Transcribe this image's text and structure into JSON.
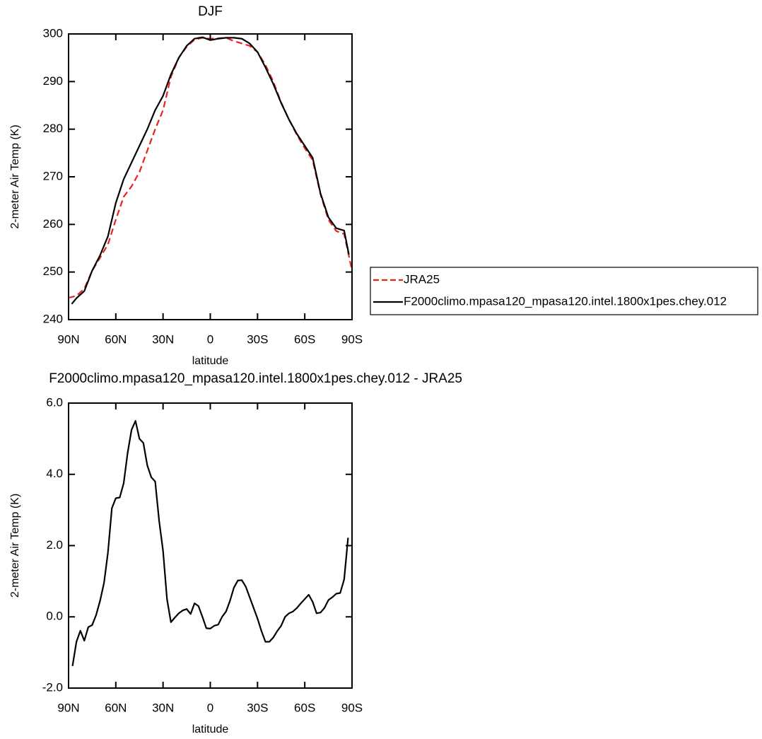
{
  "chart_data": [
    {
      "type": "line",
      "title": "DJF",
      "xlabel": "latitude",
      "ylabel": "2-meter Air Temp (K)",
      "xlim": [
        90,
        -90
      ],
      "xticks": [
        {
          "value": 90,
          "label": "90N"
        },
        {
          "value": 60,
          "label": "60N"
        },
        {
          "value": 30,
          "label": "30N"
        },
        0,
        {
          "value": -30,
          "label": "30S"
        },
        {
          "value": -60,
          "label": "60S"
        },
        {
          "value": -90,
          "label": "90S"
        }
      ],
      "ylim": [
        240,
        300
      ],
      "yticks": [
        240,
        250,
        260,
        270,
        280,
        290,
        300
      ],
      "legend": "right",
      "series": [
        {
          "name": "JRA25",
          "color": "#e8221c",
          "dash": true,
          "x": [
            90,
            85,
            80,
            75,
            70,
            65,
            60,
            55,
            50,
            45,
            40,
            35,
            30,
            25,
            20,
            15,
            10,
            5,
            0,
            -5,
            -10,
            -15,
            -20,
            -25,
            -30,
            -35,
            -40,
            -45,
            -50,
            -55,
            -60,
            -65,
            -70,
            -75,
            -80,
            -85,
            -90
          ],
          "values": [
            244.6,
            245.0,
            246.5,
            250.3,
            253.0,
            255.8,
            261.0,
            265.8,
            268.0,
            271.0,
            275.5,
            280.0,
            284.0,
            291.0,
            295.0,
            297.3,
            298.8,
            299.2,
            299.0,
            299.1,
            299.2,
            298.5,
            298.0,
            297.5,
            296.2,
            293.5,
            290.0,
            285.6,
            282.0,
            278.8,
            276.0,
            273.5,
            266.3,
            261.0,
            258.6,
            258.0,
            250.3
          ]
        },
        {
          "name": "F2000climo.mpasa120_mpasa120.intel.1800x1pes.chey.012",
          "color": "#000000",
          "dash": false,
          "x": [
            88,
            85,
            80,
            75,
            70,
            65,
            60,
            55,
            50,
            45,
            40,
            35,
            30,
            25,
            20,
            15,
            10,
            5,
            0,
            -5,
            -10,
            -15,
            -20,
            -25,
            -30,
            -35,
            -40,
            -45,
            -50,
            -55,
            -60,
            -65,
            -70,
            -75,
            -80,
            -85,
            -88
          ],
          "values": [
            243.3,
            244.5,
            246.0,
            250.3,
            253.5,
            257.5,
            264.5,
            269.5,
            273.0,
            276.5,
            280.0,
            284.0,
            287.0,
            291.5,
            295.0,
            297.5,
            299.0,
            299.3,
            298.7,
            299.0,
            299.2,
            299.2,
            299.0,
            298.0,
            296.2,
            293.0,
            289.5,
            285.5,
            282.0,
            279.0,
            276.5,
            274.0,
            266.5,
            261.5,
            259.2,
            258.7,
            253.7
          ]
        }
      ]
    },
    {
      "type": "line",
      "title": "F2000climo.mpasa120_mpasa120.intel.1800x1pes.chey.012 - JRA25",
      "xlabel": "latitude",
      "ylabel": "2-meter Air Temp (K)",
      "xlim": [
        90,
        -90
      ],
      "xticks": [
        {
          "value": 90,
          "label": "90N"
        },
        {
          "value": 60,
          "label": "60N"
        },
        {
          "value": 30,
          "label": "30N"
        },
        0,
        {
          "value": -30,
          "label": "30S"
        },
        {
          "value": -60,
          "label": "60S"
        },
        {
          "value": -90,
          "label": "90S"
        }
      ],
      "ylim": [
        -2,
        6
      ],
      "yticks": [
        {
          "value": -2,
          "label": "-2.0"
        },
        {
          "value": 0,
          "label": "0.0"
        },
        {
          "value": 2,
          "label": "2.0"
        },
        {
          "value": 4,
          "label": "4.0"
        },
        {
          "value": 6,
          "label": "6.0"
        }
      ],
      "series": [
        {
          "color": "#000000",
          "dash": false,
          "x": [
            87.5,
            85,
            82.5,
            80,
            77.5,
            75,
            72.5,
            70,
            67.5,
            65,
            62.5,
            60,
            57.5,
            55,
            52.5,
            50,
            47.5,
            45,
            42.5,
            40,
            37.5,
            35,
            32.5,
            30,
            27.5,
            25,
            22.5,
            20,
            17.5,
            15,
            12.5,
            10,
            7.5,
            5,
            2.5,
            0,
            -2.5,
            -5,
            -7.5,
            -10,
            -12.5,
            -15,
            -17.5,
            -20,
            -22.5,
            -25,
            -27.5,
            -30,
            -32.5,
            -35,
            -37.5,
            -40,
            -42.5,
            -45,
            -47.5,
            -50,
            -52.5,
            -55,
            -57.5,
            -60,
            -62.5,
            -65,
            -67.5,
            -70,
            -72.5,
            -75,
            -77.5,
            -80,
            -82.5,
            -85,
            -87.5
          ],
          "values": [
            -1.38,
            -0.7,
            -0.39,
            -0.67,
            -0.29,
            -0.23,
            0.05,
            0.45,
            0.95,
            1.8,
            3.05,
            3.33,
            3.35,
            3.75,
            4.6,
            5.25,
            5.5,
            5.0,
            4.88,
            4.25,
            3.92,
            3.8,
            2.7,
            1.85,
            0.5,
            -0.15,
            -0.02,
            0.1,
            0.18,
            0.22,
            0.08,
            0.38,
            0.3,
            0.0,
            -0.32,
            -0.33,
            -0.25,
            -0.22,
            0.0,
            0.15,
            0.45,
            0.82,
            1.02,
            1.03,
            0.85,
            0.55,
            0.25,
            -0.05,
            -0.4,
            -0.7,
            -0.7,
            -0.58,
            -0.4,
            -0.25,
            0.0,
            0.1,
            0.15,
            0.25,
            0.38,
            0.5,
            0.62,
            0.42,
            0.1,
            0.12,
            0.25,
            0.47,
            0.55,
            0.65,
            0.67,
            1.05,
            2.22
          ]
        }
      ]
    }
  ]
}
